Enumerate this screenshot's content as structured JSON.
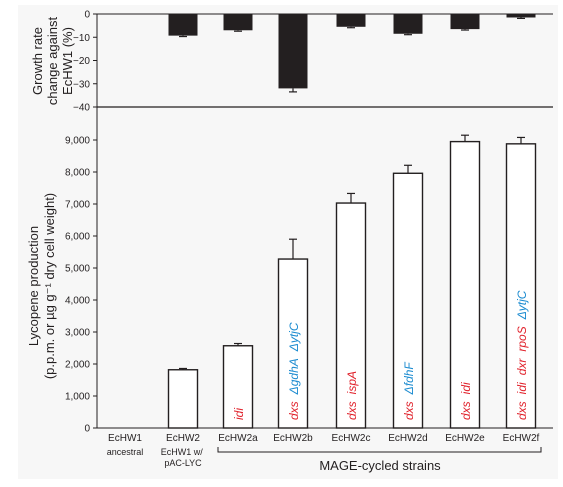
{
  "chart_data": [
    {
      "type": "bar",
      "panel": "top",
      "ylabel_lines": [
        "Growth rate",
        "change against",
        "EcHW1 (%)"
      ],
      "ylim": [
        -40,
        0
      ],
      "yticks": [
        0,
        -10,
        -20,
        -30,
        -40
      ],
      "bar_color": "#231f20",
      "categories": [
        "EcHW1",
        "EcHW2",
        "EcHW2a",
        "EcHW2b",
        "EcHW2c",
        "EcHW2d",
        "EcHW2e",
        "EcHW2f"
      ],
      "values": [
        null,
        -9.3,
        -7.0,
        -32.0,
        -5.5,
        -8.5,
        -6.5,
        -1.5
      ],
      "errors": [
        null,
        0.4,
        0.4,
        1.5,
        0.4,
        0.4,
        0.4,
        0.4
      ]
    },
    {
      "type": "bar",
      "panel": "bottom",
      "ylabel_lines": [
        "Lycopene production",
        "(p.p.m. or µg g⁻¹ dry cell weight)"
      ],
      "ylim": [
        0,
        9500
      ],
      "yticks": [
        "0",
        "1,000",
        "2,000",
        "3,000",
        "4,000",
        "5,000",
        "6,000",
        "7,000",
        "8,000",
        "9,000"
      ],
      "ytick_values": [
        0,
        1000,
        2000,
        3000,
        4000,
        5000,
        6000,
        7000,
        8000,
        9000
      ],
      "bar_color": "#ffffff",
      "categories": [
        "EcHW1",
        "EcHW2",
        "EcHW2a",
        "EcHW2b",
        "EcHW2c",
        "EcHW2d",
        "EcHW2e",
        "EcHW2f"
      ],
      "category_sublabels": [
        "ancestral",
        "EcHW1 w/ pAC-LYC",
        "",
        "",
        "",
        "",
        "",
        ""
      ],
      "values": [
        null,
        1820,
        2570,
        5280,
        7030,
        7960,
        8950,
        8880
      ],
      "errors": [
        null,
        40,
        70,
        620,
        300,
        250,
        200,
        200
      ],
      "gene_annotations": [
        [],
        [],
        [
          {
            "text": "idi",
            "color": "#e0202a"
          }
        ],
        [
          {
            "text": "dxs",
            "color": "#e0202a"
          },
          {
            "text": "ΔgdhA",
            "color": "#1b8bd0"
          },
          {
            "text": "ΔytjC",
            "color": "#1b8bd0"
          }
        ],
        [
          {
            "text": "dxs",
            "color": "#e0202a"
          },
          {
            "text": "ispA",
            "color": "#e0202a"
          }
        ],
        [
          {
            "text": "dxs",
            "color": "#e0202a"
          },
          {
            "text": "ΔfdhF",
            "color": "#1b8bd0"
          }
        ],
        [
          {
            "text": "dxs",
            "color": "#e0202a"
          },
          {
            "text": "idi",
            "color": "#e0202a"
          }
        ],
        [
          {
            "text": "dxs",
            "color": "#e0202a"
          },
          {
            "text": "idi",
            "color": "#e0202a"
          },
          {
            "text": "dxr",
            "color": "#e0202a"
          },
          {
            "text": "rpoS",
            "color": "#e0202a"
          },
          {
            "text": "ΔytjC",
            "color": "#1b8bd0"
          }
        ]
      ],
      "group_label": "MAGE-cycled strains"
    }
  ],
  "colors": {
    "axis": "#231f20",
    "gene_up": "#e0202a",
    "gene_down": "#1b8bd0",
    "panel_bg": "#f7f7f7"
  }
}
